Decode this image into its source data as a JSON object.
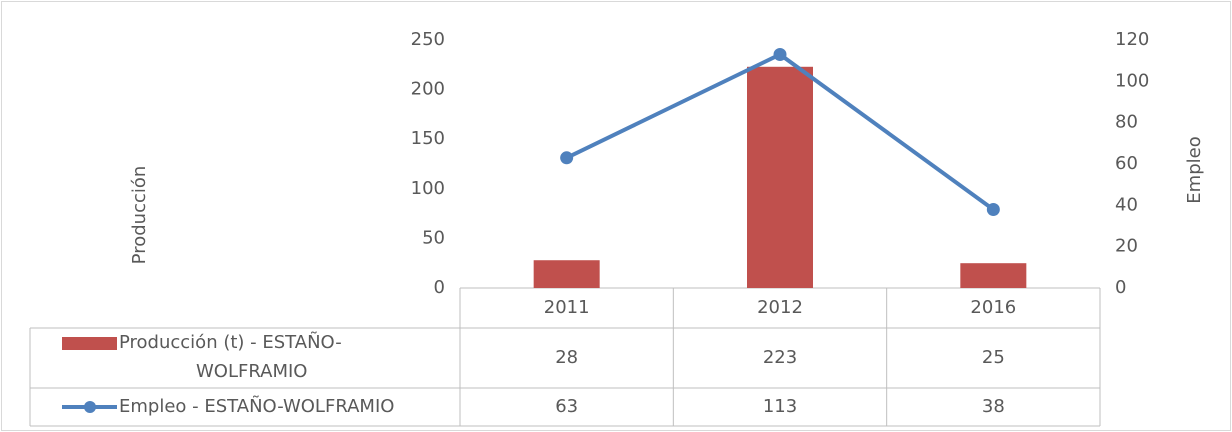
{
  "chart_data": {
    "type": "bar",
    "categories": [
      "2011",
      "2012",
      "2016"
    ],
    "series": [
      {
        "name": "Producción (t) - ESTAÑO-WOLFRAMIO",
        "color": "#c0504d",
        "values": [
          28,
          223,
          25
        ]
      },
      {
        "name": "Empleo - ESTAÑO-WOLFRAMIO",
        "color": "#4f81bd",
        "type": "line",
        "axis": "y2",
        "values": [
          63,
          113,
          38
        ]
      }
    ],
    "ylabel": "Producción",
    "y2label": "Empleo",
    "ylim": [
      0,
      250
    ],
    "yticks": [
      0,
      50,
      100,
      150,
      200,
      250
    ],
    "y2lim": [
      0,
      120
    ],
    "y2ticks": [
      0,
      20,
      40,
      60,
      80,
      100,
      120
    ],
    "grid": false,
    "legend": "table"
  }
}
